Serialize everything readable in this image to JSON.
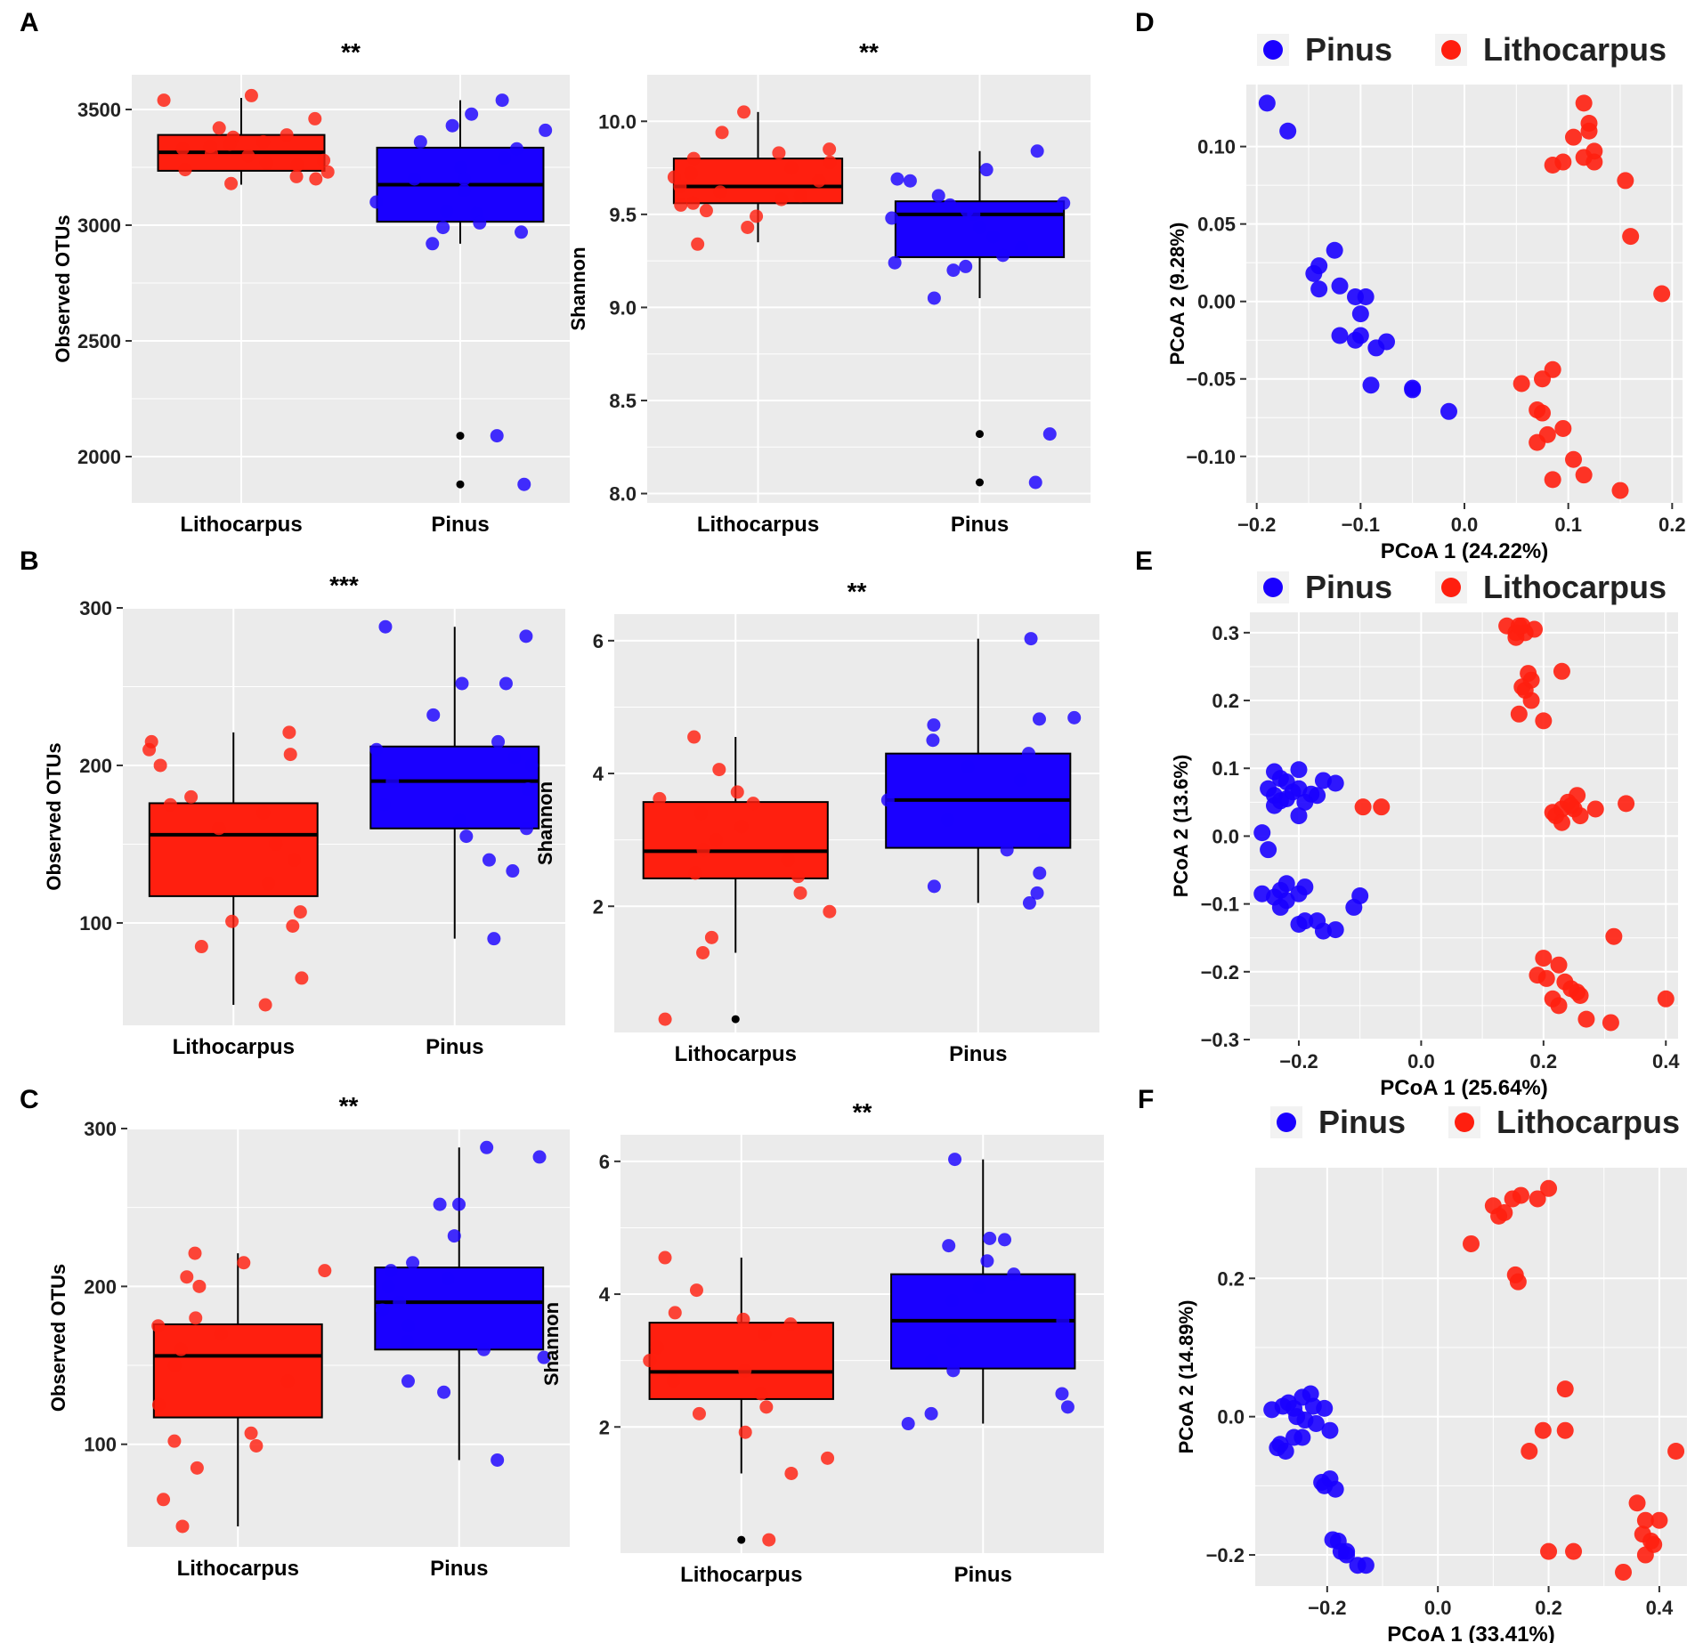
{
  "figure": {
    "panel_labels": [
      "A",
      "B",
      "C",
      "D",
      "E",
      "F"
    ],
    "colors": {
      "lithocarpus": "#ff1f0f",
      "pinus": "#1a00ff",
      "panel_bg": "#ebebeb",
      "grid": "#ffffff",
      "outlier": "#000000"
    }
  },
  "chart_data": [
    {
      "id": "A1",
      "type": "box",
      "title": "**",
      "xlabel": "",
      "ylabel": "Observed OTUs",
      "categories": [
        "Lithocarpus",
        "Pinus"
      ],
      "ylim": [
        1800,
        3650
      ],
      "yticks": [
        2000,
        2500,
        3000,
        3500
      ],
      "boxes": [
        {
          "q1": 3235,
          "median": 3315,
          "q3": 3390,
          "whisker_low": 3175,
          "whisker_high": 3550,
          "outliers": []
        },
        {
          "q1": 3015,
          "median": 3175,
          "q3": 3335,
          "whisker_low": 2920,
          "whisker_high": 3540,
          "outliers": [
            2090,
            1880
          ]
        }
      ],
      "points": [
        [
          3460,
          3540,
          3560,
          3420,
          3380,
          3360,
          3330,
          3310,
          3300,
          3280,
          3260,
          3240,
          3230,
          3210,
          3180,
          3200,
          3350,
          3270,
          3340,
          3390
        ],
        [
          3540,
          3480,
          3430,
          3360,
          3330,
          3290,
          3250,
          3200,
          3150,
          3100,
          3050,
          3010,
          2990,
          2970,
          2920,
          3060,
          3200,
          3410,
          2090,
          1880
        ]
      ]
    },
    {
      "id": "A2",
      "type": "box",
      "title": "**",
      "xlabel": "",
      "ylabel": "Shannon",
      "categories": [
        "Lithocarpus",
        "Pinus"
      ],
      "ylim": [
        7.95,
        10.25
      ],
      "yticks": [
        8.0,
        8.5,
        9.0,
        9.5,
        10.0
      ],
      "ytick_labels": [
        "8.0",
        "8.5",
        "9.0",
        "9.5",
        "10.0"
      ],
      "boxes": [
        {
          "q1": 9.56,
          "median": 9.65,
          "q3": 9.8,
          "whisker_low": 9.35,
          "whisker_high": 10.05,
          "outliers": []
        },
        {
          "q1": 9.27,
          "median": 9.5,
          "q3": 9.57,
          "whisker_low": 9.05,
          "whisker_high": 9.84,
          "outliers": [
            8.32,
            8.06
          ]
        }
      ],
      "points": [
        [
          10.05,
          9.94,
          9.85,
          9.83,
          9.78,
          9.75,
          9.72,
          9.68,
          9.65,
          9.62,
          9.6,
          9.58,
          9.56,
          9.55,
          9.52,
          9.49,
          9.43,
          9.34,
          9.7,
          9.8
        ],
        [
          9.84,
          9.74,
          9.69,
          9.68,
          9.6,
          9.56,
          9.52,
          9.48,
          9.43,
          9.38,
          9.32,
          9.28,
          9.24,
          9.22,
          9.2,
          9.05,
          9.5,
          9.55,
          8.32,
          8.06
        ]
      ]
    },
    {
      "id": "B1",
      "type": "box",
      "title": "***",
      "xlabel": "",
      "ylabel": "Observed OTUs",
      "categories": [
        "Lithocarpus",
        "Pinus"
      ],
      "ylim": [
        35,
        300
      ],
      "yticks": [
        100,
        200,
        300
      ],
      "boxes": [
        {
          "q1": 117,
          "median": 156,
          "q3": 176,
          "whisker_low": 48,
          "whisker_high": 221,
          "outliers": []
        },
        {
          "q1": 160,
          "median": 190,
          "q3": 212,
          "whisker_low": 90,
          "whisker_high": 288,
          "outliers": []
        }
      ],
      "points": [
        [
          221,
          215,
          210,
          207,
          200,
          180,
          175,
          170,
          160,
          150,
          140,
          125,
          107,
          101,
          98,
          85,
          65,
          48
        ],
        [
          288,
          282,
          252,
          252,
          232,
          215,
          210,
          205,
          200,
          190,
          185,
          175,
          165,
          160,
          155,
          140,
          133,
          90
        ]
      ]
    },
    {
      "id": "B2",
      "type": "box",
      "title": "**",
      "xlabel": "",
      "ylabel": "Shannon",
      "categories": [
        "Lithocarpus",
        "Pinus"
      ],
      "ylim": [
        0.1,
        6.4
      ],
      "yticks": [
        2,
        4,
        6
      ],
      "boxes": [
        {
          "q1": 2.42,
          "median": 2.83,
          "q3": 3.57,
          "whisker_low": 1.3,
          "whisker_high": 4.55,
          "outliers": [
            0.3
          ]
        },
        {
          "q1": 2.88,
          "median": 3.6,
          "q3": 4.3,
          "whisker_low": 2.05,
          "whisker_high": 6.03,
          "outliers": []
        }
      ],
      "points": [
        [
          4.55,
          4.06,
          3.72,
          3.62,
          3.55,
          3.4,
          3.2,
          3.0,
          2.85,
          2.7,
          2.5,
          2.45,
          2.2,
          1.92,
          1.53,
          1.3,
          0.3
        ],
        [
          6.03,
          4.84,
          4.82,
          4.73,
          4.5,
          4.3,
          4.1,
          3.9,
          3.6,
          3.3,
          3.0,
          2.85,
          2.5,
          2.3,
          2.2,
          2.05
        ]
      ]
    },
    {
      "id": "C1",
      "type": "box",
      "title": "**",
      "xlabel": "",
      "ylabel": "Observed OTUs",
      "categories": [
        "Lithocarpus",
        "Pinus"
      ],
      "ylim": [
        35,
        300
      ],
      "yticks": [
        100,
        200,
        300
      ],
      "boxes": [
        {
          "q1": 117,
          "median": 156,
          "q3": 176,
          "whisker_low": 48,
          "whisker_high": 221,
          "outliers": []
        },
        {
          "q1": 160,
          "median": 190,
          "q3": 212,
          "whisker_low": 90,
          "whisker_high": 288,
          "outliers": []
        }
      ],
      "points": [
        [
          221,
          215,
          210,
          206,
          200,
          180,
          175,
          170,
          160,
          150,
          140,
          125,
          107,
          102,
          99,
          85,
          65,
          48
        ],
        [
          288,
          282,
          252,
          252,
          232,
          215,
          210,
          205,
          200,
          190,
          185,
          175,
          165,
          160,
          155,
          140,
          133,
          90
        ]
      ]
    },
    {
      "id": "C2",
      "type": "box",
      "title": "**",
      "xlabel": "",
      "ylabel": "Shannon",
      "categories": [
        "Lithocarpus",
        "Pinus"
      ],
      "ylim": [
        0.1,
        6.4
      ],
      "yticks": [
        2,
        4,
        6
      ],
      "boxes": [
        {
          "q1": 2.42,
          "median": 2.83,
          "q3": 3.57,
          "whisker_low": 1.3,
          "whisker_high": 4.55,
          "outliers": [
            0.3
          ]
        },
        {
          "q1": 2.88,
          "median": 3.6,
          "q3": 4.3,
          "whisker_low": 2.05,
          "whisker_high": 6.03,
          "outliers": []
        }
      ],
      "points": [
        [
          4.55,
          4.06,
          3.72,
          3.62,
          3.55,
          3.4,
          3.2,
          3.0,
          2.85,
          2.7,
          2.5,
          2.3,
          2.2,
          1.92,
          1.53,
          1.3,
          0.3
        ],
        [
          6.03,
          4.84,
          4.82,
          4.73,
          4.5,
          4.3,
          4.1,
          3.9,
          3.6,
          3.3,
          3.0,
          2.85,
          2.5,
          2.3,
          2.2,
          2.05
        ]
      ]
    },
    {
      "id": "D",
      "type": "scatter",
      "xlabel": "PCoA 1 (24.22%)",
      "ylabel": "PCoA 2 (9.28%)",
      "legend": [
        "Pinus",
        "Lithocarpus"
      ],
      "legend_position": "top",
      "xlim": [
        -0.21,
        0.21
      ],
      "ylim": [
        -0.13,
        0.14
      ],
      "xticks": [
        -0.2,
        -0.1,
        0.0,
        0.1,
        0.2
      ],
      "xtick_labels": [
        "−0.2",
        "−0.1",
        "0.0",
        "0.1",
        "0.2"
      ],
      "yticks": [
        -0.1,
        -0.05,
        0.0,
        0.05,
        0.1
      ],
      "ytick_labels": [
        "−0.10",
        "−0.05",
        "0.00",
        "0.05",
        "0.10"
      ],
      "series": [
        {
          "name": "Pinus",
          "x": [
            -0.19,
            -0.17,
            -0.125,
            -0.14,
            -0.145,
            -0.12,
            -0.14,
            -0.105,
            -0.095,
            -0.1,
            -0.12,
            -0.1,
            -0.105,
            -0.085,
            -0.075,
            -0.09,
            -0.05,
            -0.05,
            -0.015
          ],
          "y": [
            0.128,
            0.11,
            0.033,
            0.023,
            0.018,
            0.01,
            0.008,
            0.003,
            0.003,
            -0.008,
            -0.022,
            -0.022,
            -0.025,
            -0.03,
            -0.026,
            -0.054,
            -0.057,
            -0.056,
            -0.071
          ]
        },
        {
          "name": "Lithocarpus",
          "x": [
            0.115,
            0.12,
            0.12,
            0.105,
            0.125,
            0.115,
            0.125,
            0.095,
            0.085,
            0.155,
            0.16,
            0.19,
            0.085,
            0.075,
            0.055,
            0.07,
            0.075,
            0.08,
            0.095,
            0.07,
            0.105,
            0.085,
            0.115,
            0.15
          ],
          "y": [
            0.128,
            0.115,
            0.11,
            0.106,
            0.097,
            0.093,
            0.09,
            0.09,
            0.088,
            0.078,
            0.042,
            0.005,
            -0.044,
            -0.05,
            -0.053,
            -0.07,
            -0.072,
            -0.086,
            -0.082,
            -0.091,
            -0.102,
            -0.115,
            -0.112,
            -0.122
          ]
        }
      ]
    },
    {
      "id": "E",
      "type": "scatter",
      "xlabel": "PCoA 1 (25.64%)",
      "ylabel": "PCoA 2 (13.6%)",
      "legend": [
        "Pinus",
        "Lithocarpus"
      ],
      "legend_position": "top",
      "xlim": [
        -0.28,
        0.42
      ],
      "ylim": [
        -0.3,
        0.33
      ],
      "xticks": [
        -0.2,
        0.0,
        0.2,
        0.4
      ],
      "xtick_labels": [
        "−0.2",
        "0.0",
        "0.2",
        "0.4"
      ],
      "yticks": [
        -0.3,
        -0.2,
        -0.1,
        0.0,
        0.1,
        0.2,
        0.3
      ],
      "ytick_labels": [
        "−0.3",
        "−0.2",
        "−0.1",
        "0.0",
        "0.1",
        "0.2",
        "0.3"
      ],
      "series": [
        {
          "name": "Pinus",
          "x": [
            -0.24,
            -0.2,
            -0.23,
            -0.22,
            -0.16,
            -0.14,
            -0.25,
            -0.21,
            -0.24,
            -0.18,
            -0.22,
            -0.19,
            -0.2,
            -0.24,
            -0.23,
            -0.26,
            -0.17,
            -0.2,
            -0.25,
            -0.19,
            -0.22,
            -0.23,
            -0.24,
            -0.26,
            -0.2,
            -0.22,
            -0.23,
            -0.19,
            -0.1,
            -0.11,
            -0.2,
            -0.17,
            -0.16,
            -0.14
          ],
          "y": [
            0.095,
            0.098,
            0.085,
            0.08,
            0.082,
            0.078,
            0.07,
            0.065,
            0.06,
            0.062,
            0.055,
            0.05,
            0.03,
            0.045,
            0.052,
            0.005,
            0.06,
            0.07,
            -0.02,
            -0.075,
            -0.07,
            -0.08,
            -0.09,
            -0.085,
            -0.085,
            -0.095,
            -0.105,
            -0.125,
            -0.088,
            -0.105,
            -0.13,
            -0.125,
            -0.14,
            -0.138
          ]
        },
        {
          "name": "Lithocarpus",
          "x": [
            -0.095,
            -0.065,
            0.14,
            0.155,
            0.165,
            0.17,
            0.185,
            0.155,
            0.16,
            0.175,
            0.18,
            0.165,
            0.17,
            0.18,
            0.2,
            0.16,
            0.23,
            0.22,
            0.23,
            0.24,
            0.25,
            0.26,
            0.255,
            0.245,
            0.285,
            0.335,
            0.215,
            0.23,
            0.2,
            0.19,
            0.205,
            0.225,
            0.235,
            0.245,
            0.255,
            0.26,
            0.215,
            0.225,
            0.27,
            0.31,
            0.4,
            0.315
          ],
          "y": [
            0.043,
            0.043,
            0.31,
            0.3,
            0.31,
            0.3,
            0.305,
            0.293,
            0.31,
            0.24,
            0.23,
            0.22,
            0.215,
            0.2,
            0.17,
            0.18,
            0.243,
            0.03,
            0.04,
            0.05,
            0.04,
            0.03,
            0.06,
            0.045,
            0.04,
            0.048,
            0.035,
            0.02,
            -0.18,
            -0.205,
            -0.21,
            -0.19,
            -0.215,
            -0.225,
            -0.23,
            -0.235,
            -0.24,
            -0.25,
            -0.27,
            -0.275,
            -0.24,
            -0.148
          ]
        }
      ]
    },
    {
      "id": "F",
      "type": "scatter",
      "xlabel": "PCoA 1 (33.41%)",
      "ylabel": "PCoA 2 (14.89%)",
      "legend": [
        "Pinus",
        "Lithocarpus"
      ],
      "legend_position": "top",
      "xlim": [
        -0.33,
        0.45
      ],
      "ylim": [
        -0.245,
        0.36
      ],
      "xticks": [
        -0.2,
        0.0,
        0.2,
        0.4
      ],
      "xtick_labels": [
        "−0.2",
        "0.0",
        "0.2",
        "0.4"
      ],
      "yticks": [
        -0.2,
        0.0,
        0.2
      ],
      "ytick_labels": [
        "−0.2",
        "0.0",
        "0.2"
      ],
      "series": [
        {
          "name": "Pinus",
          "x": [
            -0.3,
            -0.28,
            -0.27,
            -0.26,
            -0.245,
            -0.23,
            -0.225,
            -0.255,
            -0.24,
            -0.285,
            -0.22,
            -0.26,
            -0.205,
            -0.195,
            -0.29,
            -0.275,
            -0.245,
            -0.21,
            -0.195,
            -0.185,
            -0.205,
            -0.18,
            -0.165,
            -0.19,
            -0.175,
            -0.165,
            -0.145,
            -0.13
          ],
          "y": [
            0.01,
            0.015,
            0.02,
            0.012,
            0.028,
            0.033,
            0.015,
            0.0,
            -0.005,
            -0.04,
            -0.01,
            -0.03,
            0.012,
            -0.02,
            -0.045,
            -0.05,
            -0.03,
            -0.095,
            -0.09,
            -0.105,
            -0.1,
            -0.18,
            -0.195,
            -0.178,
            -0.195,
            -0.2,
            -0.215,
            -0.215
          ]
        },
        {
          "name": "Lithocarpus",
          "x": [
            0.06,
            0.1,
            0.12,
            0.135,
            0.11,
            0.15,
            0.18,
            0.2,
            0.14,
            0.145,
            0.23,
            0.165,
            0.19,
            0.23,
            0.43,
            0.36,
            0.375,
            0.4,
            0.37,
            0.385,
            0.39,
            0.375,
            0.335,
            0.2,
            0.245
          ],
          "y": [
            0.25,
            0.305,
            0.295,
            0.315,
            0.29,
            0.32,
            0.315,
            0.33,
            0.205,
            0.195,
            0.04,
            -0.05,
            -0.02,
            -0.02,
            -0.05,
            -0.125,
            -0.15,
            -0.15,
            -0.17,
            -0.18,
            -0.185,
            -0.2,
            -0.225,
            -0.195,
            -0.195
          ]
        }
      ]
    }
  ]
}
